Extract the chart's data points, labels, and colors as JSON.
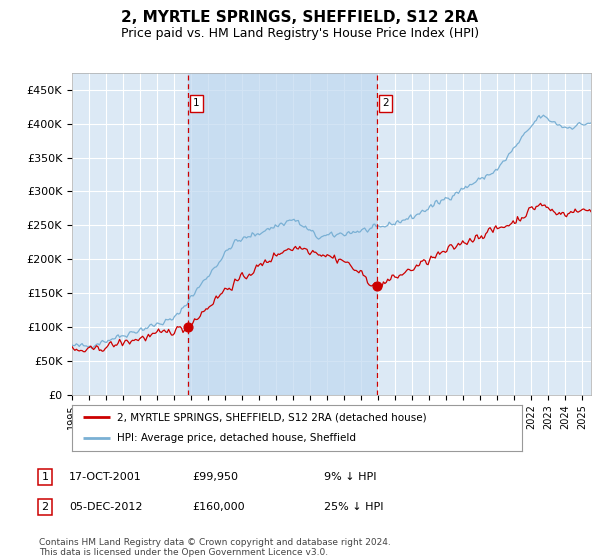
{
  "title": "2, MYRTLE SPRINGS, SHEFFIELD, S12 2RA",
  "subtitle": "Price paid vs. HM Land Registry's House Price Index (HPI)",
  "title_fontsize": 11,
  "subtitle_fontsize": 9,
  "ylim": [
    0,
    475000
  ],
  "yticks": [
    0,
    50000,
    100000,
    150000,
    200000,
    250000,
    300000,
    350000,
    400000,
    450000
  ],
  "ytick_labels": [
    "£0",
    "£50K",
    "£100K",
    "£150K",
    "£200K",
    "£250K",
    "£300K",
    "£350K",
    "£400K",
    "£450K"
  ],
  "plot_bg_color": "#dce9f5",
  "shade_color": "#c0d8f0",
  "grid_color": "#ffffff",
  "hpi_color": "#7ab0d4",
  "price_color": "#cc0000",
  "vline_color": "#cc0000",
  "marker1_x": 2001.8,
  "marker1_y": 99950,
  "marker2_x": 2012.92,
  "marker2_y": 160000,
  "legend_line1": "2, MYRTLE SPRINGS, SHEFFIELD, S12 2RA (detached house)",
  "legend_line2": "HPI: Average price, detached house, Sheffield",
  "table_row1": [
    "1",
    "17-OCT-2001",
    "£99,950",
    "9% ↓ HPI"
  ],
  "table_row2": [
    "2",
    "05-DEC-2012",
    "£160,000",
    "25% ↓ HPI"
  ],
  "footer": "Contains HM Land Registry data © Crown copyright and database right 2024.\nThis data is licensed under the Open Government Licence v3.0.",
  "xmin": 1995,
  "xmax": 2025.5
}
